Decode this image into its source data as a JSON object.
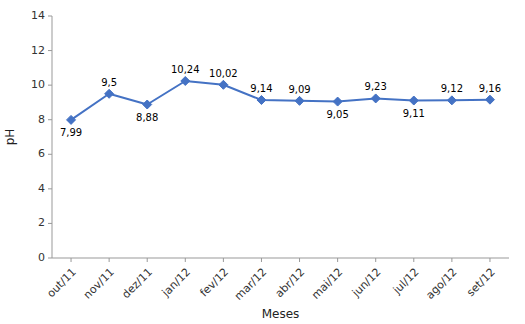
{
  "chart_data": {
    "type": "line",
    "categories": [
      "out/11",
      "nov/11",
      "dez/11",
      "jan/12",
      "fev/12",
      "mar/12",
      "abr/12",
      "mai/12",
      "jun/12",
      "jul/12",
      "ago/12",
      "set/12"
    ],
    "values": [
      7.99,
      9.5,
      8.88,
      10.24,
      10.02,
      9.14,
      9.09,
      9.05,
      9.23,
      9.11,
      9.12,
      9.16
    ],
    "value_labels": [
      "7,99",
      "9,5",
      "8,88",
      "10,24",
      "10,02",
      "9,14",
      "9,09",
      "9,05",
      "9,23",
      "9,11",
      "9,12",
      "9,16"
    ],
    "data_labels": true,
    "xlabel": "Meses",
    "ylabel": "pH",
    "ylim": [
      0,
      14
    ],
    "yticks": [
      0,
      2,
      4,
      6,
      8,
      10,
      12,
      14
    ],
    "color": "#4472C4",
    "marker": "diamond",
    "grid": false
  }
}
